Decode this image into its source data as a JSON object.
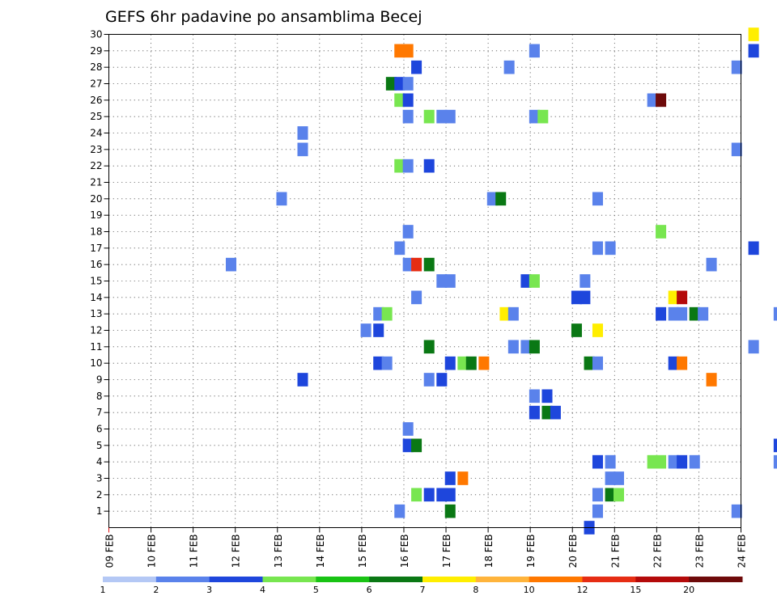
{
  "chart_data": {
    "type": "heatmap",
    "title": "GEFS 6hr padavine po ansamblima Becej",
    "x_tick_labels": [
      "09 FEB",
      "10 FEB",
      "11 FEB",
      "12 FEB",
      "13 FEB",
      "14 FEB",
      "15 FEB",
      "16 FEB",
      "17 FEB",
      "18 FEB",
      "19 FEB",
      "20 FEB",
      "21 FEB",
      "22 FEB",
      "23 FEB",
      "24 FEB"
    ],
    "x_range_days": [
      0,
      15
    ],
    "y_tick_labels": [
      "1",
      "2",
      "3",
      "4",
      "5",
      "6",
      "7",
      "8",
      "9",
      "10",
      "11",
      "12",
      "13",
      "14",
      "15",
      "16",
      "17",
      "18",
      "19",
      "20",
      "21",
      "22",
      "23",
      "24",
      "25",
      "26",
      "27",
      "28",
      "29",
      "30"
    ],
    "y_range": [
      0,
      30
    ],
    "grid": true,
    "colorbar": {
      "labels": [
        "1",
        "2",
        "3",
        "4",
        "5",
        "6",
        "7",
        "8",
        "10",
        "12",
        "15",
        "20"
      ],
      "colors": [
        "#b4c8f5",
        "#5a82eb",
        "#1e46dc",
        "#78e650",
        "#19c314",
        "#0a7814",
        "#ffee00",
        "#ffb43c",
        "#ff7800",
        "#e62d14",
        "#b40a0a",
        "#6e0a0a"
      ]
    },
    "points": [
      [
        6.9,
        29,
        8
      ],
      [
        7.1,
        29,
        8
      ],
      [
        7.3,
        28,
        2
      ],
      [
        10.1,
        29,
        1
      ],
      [
        9.5,
        28,
        1
      ],
      [
        14.9,
        28,
        1
      ],
      [
        15.3,
        30,
        6
      ],
      [
        15.3,
        29,
        2
      ],
      [
        6.7,
        27,
        5
      ],
      [
        6.9,
        27,
        2
      ],
      [
        7.1,
        27,
        1
      ],
      [
        6.9,
        26,
        3
      ],
      [
        7.1,
        26,
        2
      ],
      [
        12.9,
        26,
        1
      ],
      [
        13.1,
        26,
        11
      ],
      [
        7.1,
        25,
        1
      ],
      [
        7.6,
        25,
        3
      ],
      [
        7.9,
        25,
        1
      ],
      [
        8.1,
        25,
        1
      ],
      [
        10.1,
        25,
        1
      ],
      [
        10.3,
        25,
        3
      ],
      [
        4.6,
        24,
        1
      ],
      [
        4.6,
        23,
        1
      ],
      [
        14.9,
        23,
        1
      ],
      [
        6.9,
        22,
        3
      ],
      [
        7.1,
        22,
        1
      ],
      [
        7.6,
        22,
        2
      ],
      [
        4.1,
        20,
        1
      ],
      [
        9.1,
        20,
        1
      ],
      [
        9.3,
        20,
        5
      ],
      [
        11.6,
        20,
        1
      ],
      [
        7.1,
        18,
        1
      ],
      [
        13.1,
        18,
        3
      ],
      [
        6.9,
        17,
        1
      ],
      [
        11.6,
        17,
        1
      ],
      [
        11.9,
        17,
        1
      ],
      [
        15.3,
        17,
        2
      ],
      [
        2.9,
        16,
        1
      ],
      [
        7.1,
        16,
        1
      ],
      [
        7.3,
        16,
        9
      ],
      [
        7.6,
        16,
        5
      ],
      [
        14.3,
        16,
        1
      ],
      [
        7.9,
        15,
        1
      ],
      [
        8.1,
        15,
        1
      ],
      [
        9.9,
        15,
        2
      ],
      [
        10.1,
        15,
        3
      ],
      [
        11.3,
        15,
        1
      ],
      [
        7.3,
        14,
        1
      ],
      [
        11.1,
        14,
        2
      ],
      [
        11.3,
        14,
        2
      ],
      [
        13.4,
        14,
        6
      ],
      [
        13.6,
        14,
        10
      ],
      [
        6.4,
        13,
        1
      ],
      [
        6.6,
        13,
        3
      ],
      [
        9.4,
        13,
        6
      ],
      [
        9.6,
        13,
        1
      ],
      [
        13.1,
        13,
        2
      ],
      [
        13.4,
        13,
        1
      ],
      [
        13.6,
        13,
        1
      ],
      [
        13.9,
        13,
        5
      ],
      [
        14.1,
        13,
        1
      ],
      [
        15.9,
        13,
        1
      ],
      [
        6.1,
        12,
        1
      ],
      [
        6.4,
        12,
        2
      ],
      [
        11.1,
        12,
        5
      ],
      [
        11.6,
        12,
        6
      ],
      [
        7.6,
        11,
        5
      ],
      [
        9.6,
        11,
        1
      ],
      [
        9.9,
        11,
        1
      ],
      [
        10.1,
        11,
        5
      ],
      [
        15.3,
        11,
        1
      ],
      [
        6.4,
        10,
        2
      ],
      [
        6.6,
        10,
        1
      ],
      [
        8.1,
        10,
        2
      ],
      [
        8.4,
        10,
        3
      ],
      [
        8.6,
        10,
        5
      ],
      [
        8.9,
        10,
        8
      ],
      [
        11.4,
        10,
        5
      ],
      [
        11.6,
        10,
        1
      ],
      [
        13.4,
        10,
        2
      ],
      [
        13.6,
        10,
        8
      ],
      [
        4.6,
        9,
        2
      ],
      [
        7.6,
        9,
        1
      ],
      [
        7.9,
        9,
        2
      ],
      [
        14.3,
        9,
        8
      ],
      [
        10.1,
        8,
        1
      ],
      [
        10.4,
        8,
        2
      ],
      [
        10.1,
        7,
        2
      ],
      [
        10.4,
        7,
        5
      ],
      [
        10.6,
        7,
        2
      ],
      [
        7.1,
        6,
        1
      ],
      [
        7.1,
        5,
        2
      ],
      [
        7.3,
        5,
        5
      ],
      [
        15.9,
        5,
        2
      ],
      [
        11.6,
        4,
        2
      ],
      [
        11.9,
        4,
        1
      ],
      [
        12.9,
        4,
        3
      ],
      [
        13.1,
        4,
        3
      ],
      [
        13.4,
        4,
        1
      ],
      [
        13.6,
        4,
        2
      ],
      [
        13.9,
        4,
        1
      ],
      [
        15.9,
        4,
        1
      ],
      [
        8.1,
        3,
        2
      ],
      [
        8.4,
        3,
        8
      ],
      [
        11.9,
        3,
        1
      ],
      [
        12.1,
        3,
        1
      ],
      [
        7.3,
        2,
        3
      ],
      [
        7.6,
        2,
        2
      ],
      [
        7.9,
        2,
        2
      ],
      [
        8.1,
        2,
        2
      ],
      [
        11.6,
        2,
        1
      ],
      [
        11.9,
        2,
        5
      ],
      [
        12.1,
        2,
        3
      ],
      [
        6.9,
        1,
        1
      ],
      [
        8.1,
        1,
        5
      ],
      [
        11.6,
        1,
        1
      ],
      [
        14.9,
        1,
        1
      ],
      [
        11.4,
        0,
        2
      ]
    ]
  }
}
